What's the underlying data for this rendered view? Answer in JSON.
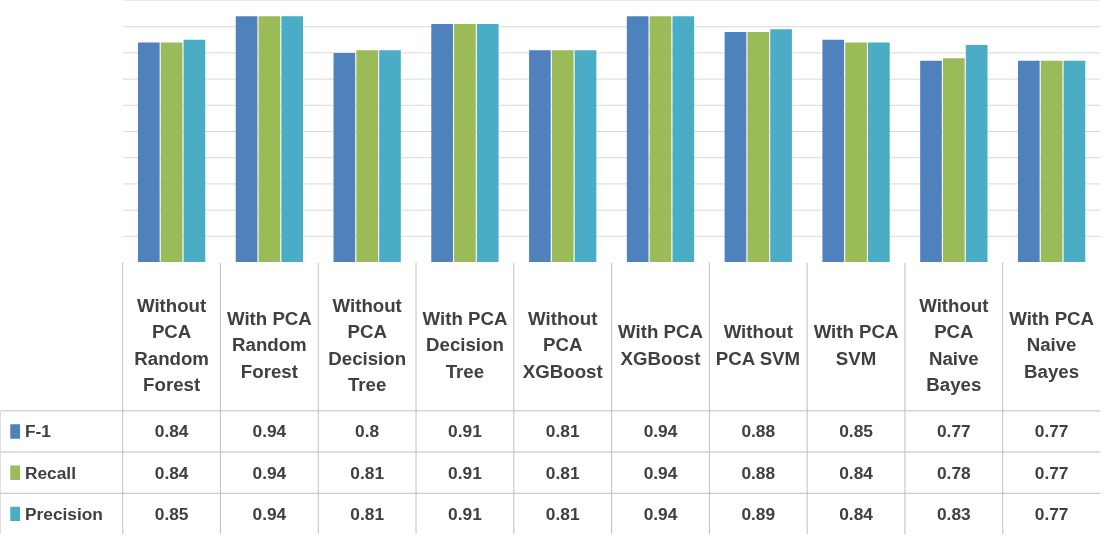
{
  "chart_data": {
    "type": "bar",
    "categories": [
      "Without PCA Random Forest",
      "With PCA Random Forest",
      "Without PCA Decision Tree",
      "With PCA Decision Tree",
      "Without PCA XGBoost",
      "With PCA XGBoost",
      "Without PCA SVM",
      "With PCA SVM",
      "Without PCA Naive Bayes",
      "With PCA Naive Bayes"
    ],
    "series": [
      {
        "name": "F-1",
        "color": "#4f81bd",
        "values": [
          0.84,
          0.94,
          0.8,
          0.91,
          0.81,
          0.94,
          0.88,
          0.85,
          0.77,
          0.77
        ]
      },
      {
        "name": "Recall",
        "color": "#9bbb59",
        "values": [
          0.84,
          0.94,
          0.81,
          0.91,
          0.81,
          0.94,
          0.88,
          0.84,
          0.78,
          0.77
        ]
      },
      {
        "name": "Precision",
        "color": "#4bacc6",
        "values": [
          0.85,
          0.94,
          0.81,
          0.91,
          0.81,
          0.94,
          0.89,
          0.84,
          0.83,
          0.77
        ]
      }
    ],
    "data_labels": true,
    "legend": "bottom left",
    "grid": "y",
    "tick_labels": false
  }
}
